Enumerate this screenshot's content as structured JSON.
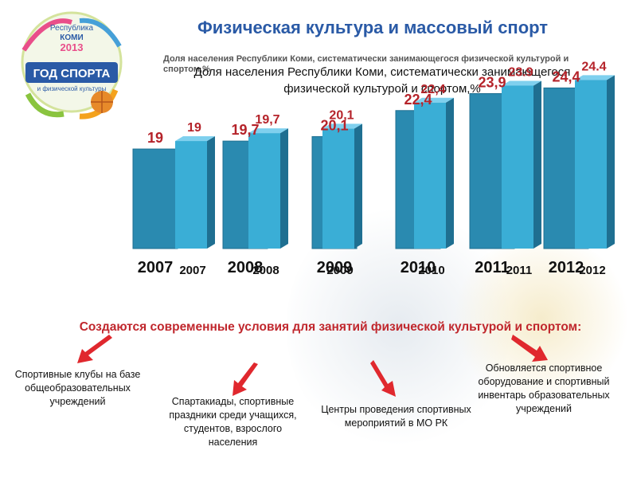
{
  "title": "Физическая культура и массовый спорт",
  "subtitle_small": "Доля населения Республики Коми, систематически занимающегося физической культурой и спортом,%",
  "subtitle_big": "Доля населения Республики Коми, систематически занимающегося физической культурой и спортом,%",
  "logo": {
    "line1": "Республика",
    "line2": "КОМИ",
    "line3": "2013",
    "line4": "ГОД СПОРТА",
    "line5": "и физической культуры"
  },
  "chart_data": {
    "type": "bar",
    "categories": [
      "2007",
      "2008",
      "2009",
      "2010",
      "2011",
      "2012"
    ],
    "series": [
      {
        "values": [
          19,
          19.7,
          20.1,
          22.4,
          23.9,
          24.4
        ],
        "labels": [
          "19",
          "19,7",
          "20,1",
          "22,4",
          "23,9",
          "24,4"
        ],
        "color": "#2f8fb5"
      },
      {
        "values": [
          19,
          19.7,
          20.1,
          22.4,
          23.9,
          24.4
        ],
        "labels": [
          "19",
          "19,7",
          "20,1",
          "22,4",
          "23.9",
          "24.4"
        ],
        "color": "#3aaed6"
      }
    ],
    "colors": {
      "front_face": "#3aaed6",
      "side_face": "#1f6f91",
      "top_face": "#7fd0ee",
      "back_bar": "#2a8ab0",
      "label": "#b5232a"
    }
  },
  "conditions_heading": "Создаются современные условия для занятий физической культурой и спортом:",
  "items": [
    "Спортивные клубы на базе общеобразовательных учреждений",
    "Спартакиады, спортивные праздники среди учащихся, студентов, взрослого населения",
    "Центры проведения спортивных мероприятий в МО РК",
    "Обновляется спортивное оборудование и спортивный инвентарь образовательных учреждений"
  ],
  "colors": {
    "title": "#2a5aa6",
    "accent": "#c0272d",
    "arrow": "#e0282e"
  }
}
